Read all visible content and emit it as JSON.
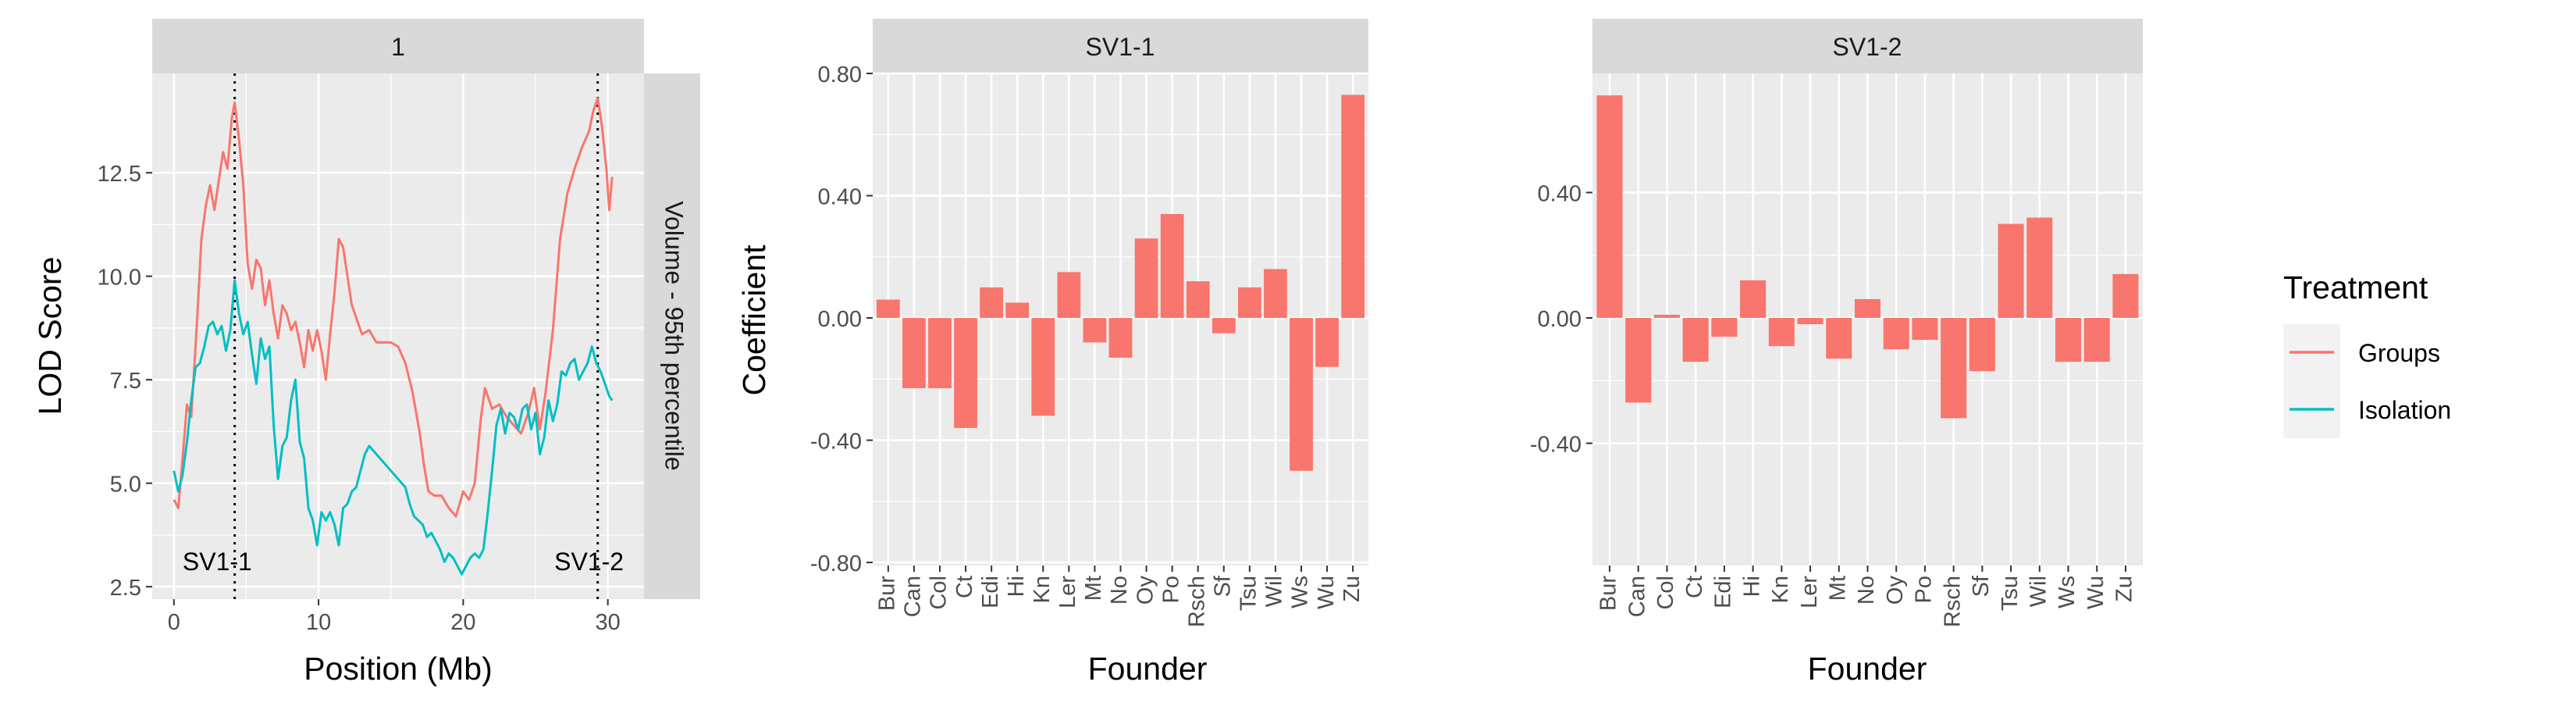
{
  "chart_data": [
    {
      "type": "line",
      "facet_top": "1",
      "facet_right": "Volume - 95th percentile",
      "xlabel": "Position (Mb)",
      "ylabel": "LOD Score",
      "xlim": [
        -1.5,
        32.5
      ],
      "ylim": [
        2.2,
        14.9
      ],
      "xticks": [
        "0",
        "10",
        "20",
        "30"
      ],
      "xtick_values": [
        0,
        10,
        20,
        30
      ],
      "yticks": [
        "2.5",
        "5.0",
        "7.5",
        "10.0",
        "12.5"
      ],
      "ytick_values": [
        2.5,
        5.0,
        7.5,
        10.0,
        12.5
      ],
      "vlines": [
        4.2,
        29.3
      ],
      "annotations": [
        {
          "text": "SV1-1",
          "x": 0.6,
          "y": 2.9
        },
        {
          "text": "SV1-2",
          "x": 26.3,
          "y": 2.9
        }
      ],
      "series": [
        {
          "name": "Groups",
          "color": "#F8766D",
          "points": [
            [
              0,
              4.6
            ],
            [
              0.3,
              4.4
            ],
            [
              0.6,
              5.6
            ],
            [
              0.9,
              6.9
            ],
            [
              1.2,
              6.6
            ],
            [
              1.6,
              8.9
            ],
            [
              1.9,
              10.9
            ],
            [
              2.2,
              11.7
            ],
            [
              2.5,
              12.2
            ],
            [
              2.8,
              11.6
            ],
            [
              3.1,
              12.3
            ],
            [
              3.4,
              13.0
            ],
            [
              3.7,
              12.6
            ],
            [
              4.0,
              13.8
            ],
            [
              4.2,
              14.2
            ],
            [
              4.5,
              13.3
            ],
            [
              4.8,
              12.2
            ],
            [
              5.1,
              10.3
            ],
            [
              5.4,
              9.7
            ],
            [
              5.7,
              10.4
            ],
            [
              6.0,
              10.2
            ],
            [
              6.3,
              9.3
            ],
            [
              6.6,
              9.9
            ],
            [
              6.9,
              9.1
            ],
            [
              7.2,
              8.5
            ],
            [
              7.5,
              9.3
            ],
            [
              7.8,
              9.1
            ],
            [
              8.1,
              8.7
            ],
            [
              8.4,
              8.9
            ],
            [
              8.7,
              8.4
            ],
            [
              9.0,
              7.8
            ],
            [
              9.3,
              8.7
            ],
            [
              9.6,
              8.2
            ],
            [
              9.9,
              8.7
            ],
            [
              10.2,
              8.2
            ],
            [
              10.5,
              7.5
            ],
            [
              10.8,
              8.6
            ],
            [
              11.1,
              9.6
            ],
            [
              11.4,
              10.9
            ],
            [
              11.7,
              10.7
            ],
            [
              12.0,
              10.0
            ],
            [
              12.3,
              9.3
            ],
            [
              12.6,
              9.0
            ],
            [
              13.0,
              8.6
            ],
            [
              13.5,
              8.7
            ],
            [
              14.0,
              8.4
            ],
            [
              14.5,
              8.4
            ],
            [
              15.0,
              8.4
            ],
            [
              15.5,
              8.3
            ],
            [
              16.0,
              7.9
            ],
            [
              16.5,
              7.2
            ],
            [
              17.0,
              6.2
            ],
            [
              17.3,
              5.4
            ],
            [
              17.6,
              4.8
            ],
            [
              18.0,
              4.7
            ],
            [
              18.5,
              4.7
            ],
            [
              19.0,
              4.4
            ],
            [
              19.5,
              4.2
            ],
            [
              20.0,
              4.8
            ],
            [
              20.4,
              4.6
            ],
            [
              20.8,
              5.0
            ],
            [
              21.2,
              6.5
            ],
            [
              21.5,
              7.3
            ],
            [
              22.0,
              6.8
            ],
            [
              22.5,
              6.9
            ],
            [
              23.0,
              6.6
            ],
            [
              23.5,
              6.4
            ],
            [
              24.0,
              6.2
            ],
            [
              24.5,
              6.7
            ],
            [
              24.9,
              7.3
            ],
            [
              25.3,
              6.3
            ],
            [
              25.7,
              7.2
            ],
            [
              26.2,
              8.7
            ],
            [
              26.7,
              10.9
            ],
            [
              27.2,
              12.0
            ],
            [
              27.7,
              12.6
            ],
            [
              28.2,
              13.1
            ],
            [
              28.7,
              13.5
            ],
            [
              29.0,
              14.0
            ],
            [
              29.3,
              14.3
            ],
            [
              29.6,
              13.6
            ],
            [
              29.9,
              12.6
            ],
            [
              30.1,
              11.6
            ],
            [
              30.3,
              12.4
            ]
          ]
        },
        {
          "name": "Isolation",
          "color": "#00BFC4",
          "points": [
            [
              0,
              5.3
            ],
            [
              0.3,
              4.8
            ],
            [
              0.6,
              5.2
            ],
            [
              0.9,
              6.0
            ],
            [
              1.2,
              7.0
            ],
            [
              1.5,
              7.8
            ],
            [
              1.8,
              7.9
            ],
            [
              2.1,
              8.3
            ],
            [
              2.4,
              8.8
            ],
            [
              2.7,
              8.9
            ],
            [
              3.0,
              8.6
            ],
            [
              3.3,
              8.8
            ],
            [
              3.6,
              8.2
            ],
            [
              3.9,
              8.7
            ],
            [
              4.2,
              9.9
            ],
            [
              4.5,
              9.1
            ],
            [
              4.8,
              8.6
            ],
            [
              5.1,
              8.9
            ],
            [
              5.4,
              8.1
            ],
            [
              5.7,
              7.4
            ],
            [
              6.0,
              8.5
            ],
            [
              6.3,
              8.0
            ],
            [
              6.6,
              8.3
            ],
            [
              6.9,
              6.4
            ],
            [
              7.2,
              5.1
            ],
            [
              7.5,
              5.9
            ],
            [
              7.8,
              6.1
            ],
            [
              8.1,
              7.0
            ],
            [
              8.4,
              7.5
            ],
            [
              8.7,
              6.0
            ],
            [
              9.0,
              5.6
            ],
            [
              9.3,
              4.4
            ],
            [
              9.6,
              4.1
            ],
            [
              9.9,
              3.5
            ],
            [
              10.2,
              4.3
            ],
            [
              10.5,
              4.1
            ],
            [
              10.8,
              4.3
            ],
            [
              11.1,
              4.0
            ],
            [
              11.4,
              3.5
            ],
            [
              11.7,
              4.4
            ],
            [
              12.0,
              4.5
            ],
            [
              12.3,
              4.8
            ],
            [
              12.6,
              4.9
            ],
            [
              12.9,
              5.3
            ],
            [
              13.2,
              5.7
            ],
            [
              13.5,
              5.9
            ],
            [
              14.0,
              5.7
            ],
            [
              14.5,
              5.5
            ],
            [
              15.0,
              5.3
            ],
            [
              15.5,
              5.1
            ],
            [
              16.0,
              4.9
            ],
            [
              16.3,
              4.5
            ],
            [
              16.6,
              4.2
            ],
            [
              16.9,
              4.1
            ],
            [
              17.2,
              4.0
            ],
            [
              17.5,
              3.7
            ],
            [
              17.8,
              3.8
            ],
            [
              18.1,
              3.6
            ],
            [
              18.4,
              3.4
            ],
            [
              18.7,
              3.1
            ],
            [
              19.0,
              3.3
            ],
            [
              19.3,
              3.2
            ],
            [
              19.6,
              3.0
            ],
            [
              19.9,
              2.8
            ],
            [
              20.2,
              3.0
            ],
            [
              20.5,
              3.2
            ],
            [
              20.8,
              3.3
            ],
            [
              21.1,
              3.2
            ],
            [
              21.4,
              3.4
            ],
            [
              21.7,
              4.3
            ],
            [
              22.0,
              5.3
            ],
            [
              22.3,
              6.4
            ],
            [
              22.6,
              6.8
            ],
            [
              22.9,
              6.2
            ],
            [
              23.2,
              6.7
            ],
            [
              23.5,
              6.6
            ],
            [
              23.8,
              6.3
            ],
            [
              24.1,
              6.8
            ],
            [
              24.4,
              6.9
            ],
            [
              24.7,
              6.3
            ],
            [
              25.0,
              6.7
            ],
            [
              25.3,
              5.7
            ],
            [
              25.6,
              6.1
            ],
            [
              25.9,
              7.0
            ],
            [
              26.2,
              6.5
            ],
            [
              26.5,
              6.9
            ],
            [
              26.8,
              7.7
            ],
            [
              27.1,
              7.6
            ],
            [
              27.4,
              7.9
            ],
            [
              27.7,
              8.0
            ],
            [
              28.0,
              7.5
            ],
            [
              28.3,
              7.7
            ],
            [
              28.6,
              7.9
            ],
            [
              28.9,
              8.3
            ],
            [
              29.2,
              7.9
            ],
            [
              29.5,
              7.7
            ],
            [
              29.8,
              7.4
            ],
            [
              30.1,
              7.1
            ],
            [
              30.3,
              7.0
            ]
          ]
        }
      ]
    },
    {
      "type": "bar",
      "facet_top": "SV1-1",
      "xlabel": "Founder",
      "ylabel": "Coefficient",
      "color": "#F8766D",
      "ylim": [
        -0.81,
        0.8
      ],
      "yticks": [
        "-0.80",
        "-0.40",
        "0.00",
        "0.40",
        "0.80"
      ],
      "ytick_values": [
        -0.8,
        -0.4,
        0.0,
        0.4,
        0.8
      ],
      "categories": [
        "Bur",
        "Can",
        "Col",
        "Ct",
        "Edi",
        "Hi",
        "Kn",
        "Ler",
        "Mt",
        "No",
        "Oy",
        "Po",
        "Rsch",
        "Sf",
        "Tsu",
        "Wil",
        "Ws",
        "Wu",
        "Zu"
      ],
      "values": [
        0.06,
        -0.23,
        -0.23,
        -0.36,
        0.1,
        0.05,
        -0.32,
        0.15,
        -0.08,
        -0.13,
        0.26,
        0.34,
        0.12,
        -0.05,
        0.1,
        0.16,
        -0.5,
        -0.16,
        0.73
      ]
    },
    {
      "type": "bar",
      "facet_top": "SV1-2",
      "xlabel": "Founder",
      "ylabel": "",
      "color": "#F8766D",
      "ylim": [
        -0.79,
        0.78
      ],
      "yticks": [
        "-0.40",
        "0.00",
        "0.40"
      ],
      "ytick_values": [
        -0.4,
        0.0,
        0.4
      ],
      "categories": [
        "Bur",
        "Can",
        "Col",
        "Ct",
        "Edi",
        "Hi",
        "Kn",
        "Ler",
        "Mt",
        "No",
        "Oy",
        "Po",
        "Rsch",
        "Sf",
        "Tsu",
        "Wil",
        "Ws",
        "Wu",
        "Zu"
      ],
      "values": [
        0.71,
        -0.27,
        0.01,
        -0.14,
        -0.06,
        0.12,
        -0.09,
        -0.02,
        -0.13,
        0.06,
        -0.1,
        -0.07,
        -0.32,
        -0.17,
        0.3,
        0.32,
        -0.14,
        -0.14,
        0.14
      ]
    }
  ],
  "legend": {
    "title": "Treatment",
    "items": [
      {
        "label": "Groups",
        "color": "#F8766D"
      },
      {
        "label": "Isolation",
        "color": "#00BFC4"
      }
    ]
  }
}
